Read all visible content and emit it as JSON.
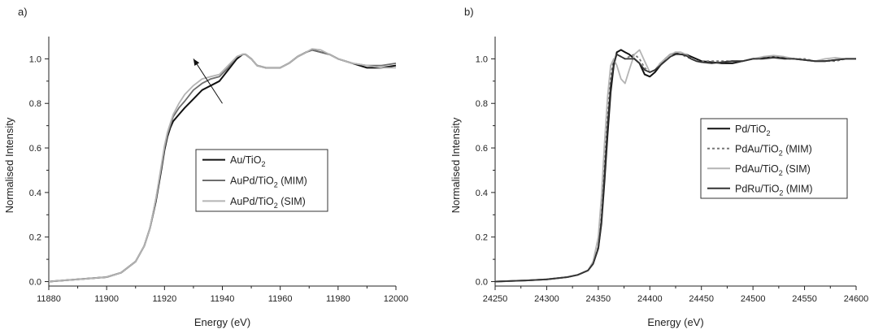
{
  "chart_data": [
    {
      "panel_label": "a)",
      "type": "line",
      "xlabel": "Energy (eV)",
      "ylabel": "Normalised Intensity",
      "xlim": [
        11880,
        12000
      ],
      "ylim": [
        -0.02,
        1.1
      ],
      "xticks": [
        11880,
        11900,
        11920,
        11940,
        11960,
        11980,
        12000
      ],
      "yticks": [
        0.0,
        0.2,
        0.4,
        0.6,
        0.8,
        1.0
      ],
      "legend_position": "center-right",
      "annotation": "arrow pointing up-left near x=11940, y=0.82",
      "series": [
        {
          "name": "Au/TiO",
          "sub": "2",
          "suffix": "",
          "color": "#111111",
          "dash": "",
          "x": [
            11880,
            11890,
            11900,
            11905,
            11910,
            11913,
            11915,
            11917,
            11919,
            11920,
            11921,
            11922,
            11923,
            11925,
            11927,
            11930,
            11933,
            11936,
            11939,
            11942,
            11945,
            11947,
            11948,
            11950,
            11952,
            11955,
            11958,
            11960,
            11963,
            11966,
            11969,
            11971,
            11974,
            11977,
            11980,
            11985,
            11990,
            11995,
            12000
          ],
          "y": [
            0.0,
            0.01,
            0.02,
            0.04,
            0.09,
            0.16,
            0.24,
            0.36,
            0.51,
            0.59,
            0.65,
            0.69,
            0.72,
            0.75,
            0.78,
            0.82,
            0.86,
            0.88,
            0.9,
            0.95,
            1.0,
            1.02,
            1.02,
            1.0,
            0.97,
            0.96,
            0.96,
            0.96,
            0.98,
            1.01,
            1.03,
            1.04,
            1.03,
            1.02,
            1.0,
            0.98,
            0.96,
            0.96,
            0.97
          ]
        },
        {
          "name": "AuPd/TiO",
          "sub": "2",
          "suffix": " (MIM)",
          "color": "#6e6e6e",
          "dash": "",
          "x": [
            11880,
            11890,
            11900,
            11905,
            11910,
            11913,
            11915,
            11917,
            11919,
            11920,
            11921,
            11922,
            11923,
            11925,
            11927,
            11930,
            11933,
            11936,
            11939,
            11942,
            11945,
            11947,
            11948,
            11950,
            11952,
            11955,
            11958,
            11960,
            11963,
            11966,
            11969,
            11971,
            11974,
            11977,
            11980,
            11985,
            11990,
            11995,
            12000
          ],
          "y": [
            0.0,
            0.01,
            0.02,
            0.04,
            0.09,
            0.16,
            0.24,
            0.37,
            0.52,
            0.6,
            0.66,
            0.7,
            0.74,
            0.78,
            0.81,
            0.86,
            0.89,
            0.91,
            0.92,
            0.96,
            1.01,
            1.02,
            1.02,
            1.0,
            0.97,
            0.96,
            0.96,
            0.96,
            0.98,
            1.01,
            1.03,
            1.04,
            1.03,
            1.02,
            1.0,
            0.98,
            0.97,
            0.97,
            0.98
          ]
        },
        {
          "name": "AuPd/TiO",
          "sub": "2",
          "suffix": " (SIM)",
          "color": "#b4b4b4",
          "dash": "",
          "x": [
            11880,
            11890,
            11900,
            11905,
            11910,
            11913,
            11915,
            11917,
            11919,
            11920,
            11921,
            11922,
            11923,
            11925,
            11927,
            11930,
            11933,
            11936,
            11939,
            11942,
            11945,
            11947,
            11948,
            11950,
            11952,
            11955,
            11958,
            11960,
            11963,
            11966,
            11969,
            11971,
            11974,
            11977,
            11980,
            11985,
            11990,
            11995,
            12000
          ],
          "y": [
            0.0,
            0.01,
            0.02,
            0.04,
            0.09,
            0.16,
            0.24,
            0.37,
            0.53,
            0.61,
            0.67,
            0.71,
            0.75,
            0.8,
            0.84,
            0.88,
            0.91,
            0.92,
            0.93,
            0.97,
            1.01,
            1.02,
            1.02,
            1.0,
            0.97,
            0.96,
            0.96,
            0.96,
            0.98,
            1.01,
            1.03,
            1.045,
            1.04,
            1.02,
            1.0,
            0.98,
            0.97,
            0.96,
            0.96
          ]
        }
      ]
    },
    {
      "panel_label": "b)",
      "type": "line",
      "xlabel": "Energy (eV)",
      "ylabel": "Normalised Intensity",
      "xlim": [
        24250,
        24600
      ],
      "ylim": [
        -0.02,
        1.1
      ],
      "xticks": [
        24250,
        24300,
        24350,
        24400,
        24450,
        24500,
        24550,
        24600
      ],
      "yticks": [
        0.0,
        0.2,
        0.4,
        0.6,
        0.8,
        1.0
      ],
      "legend_position": "center-right",
      "series": [
        {
          "name": "Pd/TiO",
          "sub": "2",
          "suffix": "",
          "color": "#111111",
          "dash": "",
          "x": [
            24250,
            24280,
            24300,
            24320,
            24330,
            24340,
            24345,
            24350,
            24353,
            24356,
            24359,
            24362,
            24365,
            24368,
            24372,
            24376,
            24380,
            24385,
            24390,
            24395,
            24400,
            24405,
            24410,
            24415,
            24420,
            24425,
            24430,
            24435,
            24440,
            24445,
            24450,
            24460,
            24470,
            24480,
            24490,
            24500,
            24510,
            24520,
            24530,
            24540,
            24550,
            24560,
            24570,
            24580,
            24590,
            24600
          ],
          "y": [
            0.0,
            0.005,
            0.01,
            0.02,
            0.03,
            0.05,
            0.08,
            0.15,
            0.26,
            0.45,
            0.66,
            0.85,
            0.97,
            1.03,
            1.04,
            1.03,
            1.02,
            1.0,
            0.98,
            0.93,
            0.92,
            0.94,
            0.97,
            1.0,
            1.02,
            1.025,
            1.02,
            1.02,
            1.01,
            1.0,
            0.99,
            0.985,
            0.98,
            0.98,
            0.99,
            1.0,
            1.005,
            1.01,
            1.005,
            1.0,
            0.995,
            0.99,
            0.99,
            0.995,
            1.0,
            1.0
          ]
        },
        {
          "name": "PdAu/TiO",
          "sub": "2",
          "suffix": " (MIM)",
          "color": "#777777",
          "dash": "3,3",
          "x": [
            24250,
            24280,
            24300,
            24320,
            24330,
            24340,
            24345,
            24350,
            24353,
            24356,
            24359,
            24362,
            24365,
            24368,
            24372,
            24376,
            24380,
            24385,
            24390,
            24395,
            24400,
            24405,
            24410,
            24415,
            24420,
            24425,
            24430,
            24435,
            24440,
            24445,
            24450,
            24460,
            24470,
            24480,
            24490,
            24500,
            24510,
            24520,
            24530,
            24540,
            24550,
            24560,
            24570,
            24580,
            24590,
            24600
          ],
          "y": [
            0.0,
            0.005,
            0.01,
            0.02,
            0.03,
            0.05,
            0.08,
            0.16,
            0.3,
            0.52,
            0.74,
            0.92,
            1.0,
            1.02,
            1.01,
            1.0,
            1.01,
            1.02,
            1.0,
            0.96,
            0.94,
            0.95,
            0.98,
            1.0,
            1.02,
            1.03,
            1.02,
            1.01,
            1.0,
            0.99,
            0.99,
            0.99,
            0.99,
            0.99,
            0.99,
            1.0,
            1.0,
            1.01,
            1.0,
            1.0,
            1.0,
            0.99,
            0.99,
            0.99,
            1.0,
            1.0
          ]
        },
        {
          "name": "PdAu/TiO",
          "sub": "2",
          "suffix": " (SIM)",
          "color": "#b4b4b4",
          "dash": "",
          "x": [
            24250,
            24280,
            24300,
            24320,
            24330,
            24340,
            24345,
            24350,
            24353,
            24356,
            24359,
            24362,
            24365,
            24368,
            24372,
            24376,
            24380,
            24385,
            24390,
            24395,
            24400,
            24405,
            24410,
            24415,
            24420,
            24425,
            24430,
            24435,
            24440,
            24445,
            24450,
            24460,
            24470,
            24480,
            24490,
            24500,
            24510,
            24520,
            24530,
            24540,
            24550,
            24560,
            24570,
            24580,
            24590,
            24600
          ],
          "y": [
            0.0,
            0.005,
            0.01,
            0.02,
            0.03,
            0.05,
            0.09,
            0.2,
            0.38,
            0.62,
            0.83,
            0.97,
            1.0,
            0.97,
            0.91,
            0.89,
            0.95,
            1.02,
            1.04,
            0.99,
            0.94,
            0.95,
            0.98,
            1.0,
            1.02,
            1.03,
            1.03,
            1.02,
            1.0,
            0.99,
            0.985,
            0.98,
            0.985,
            0.99,
            0.99,
            1.0,
            1.01,
            1.015,
            1.01,
            1.0,
            0.995,
            0.99,
            1.0,
            1.005,
            1.0,
            1.0
          ]
        },
        {
          "name": "PdRu/TiO",
          "sub": "2",
          "suffix": " (MIM)",
          "color": "#333333",
          "dash": "",
          "x": [
            24250,
            24280,
            24300,
            24320,
            24330,
            24340,
            24345,
            24350,
            24353,
            24356,
            24359,
            24362,
            24365,
            24368,
            24372,
            24376,
            24380,
            24385,
            24390,
            24395,
            24400,
            24405,
            24410,
            24415,
            24420,
            24425,
            24430,
            24435,
            24440,
            24445,
            24450,
            24460,
            24470,
            24480,
            24490,
            24500,
            24510,
            24520,
            24530,
            24540,
            24550,
            24560,
            24570,
            24580,
            24590,
            24600
          ],
          "y": [
            0.0,
            0.005,
            0.01,
            0.02,
            0.03,
            0.05,
            0.08,
            0.15,
            0.27,
            0.48,
            0.7,
            0.88,
            0.98,
            1.02,
            1.01,
            1.0,
            1.0,
            1.0,
            0.98,
            0.95,
            0.94,
            0.95,
            0.97,
            0.99,
            1.01,
            1.02,
            1.02,
            1.015,
            1.0,
            0.99,
            0.985,
            0.98,
            0.985,
            0.99,
            0.99,
            1.0,
            1.0,
            1.005,
            1.0,
            1.0,
            0.995,
            0.99,
            0.99,
            0.995,
            1.0,
            1.0
          ]
        }
      ]
    }
  ]
}
